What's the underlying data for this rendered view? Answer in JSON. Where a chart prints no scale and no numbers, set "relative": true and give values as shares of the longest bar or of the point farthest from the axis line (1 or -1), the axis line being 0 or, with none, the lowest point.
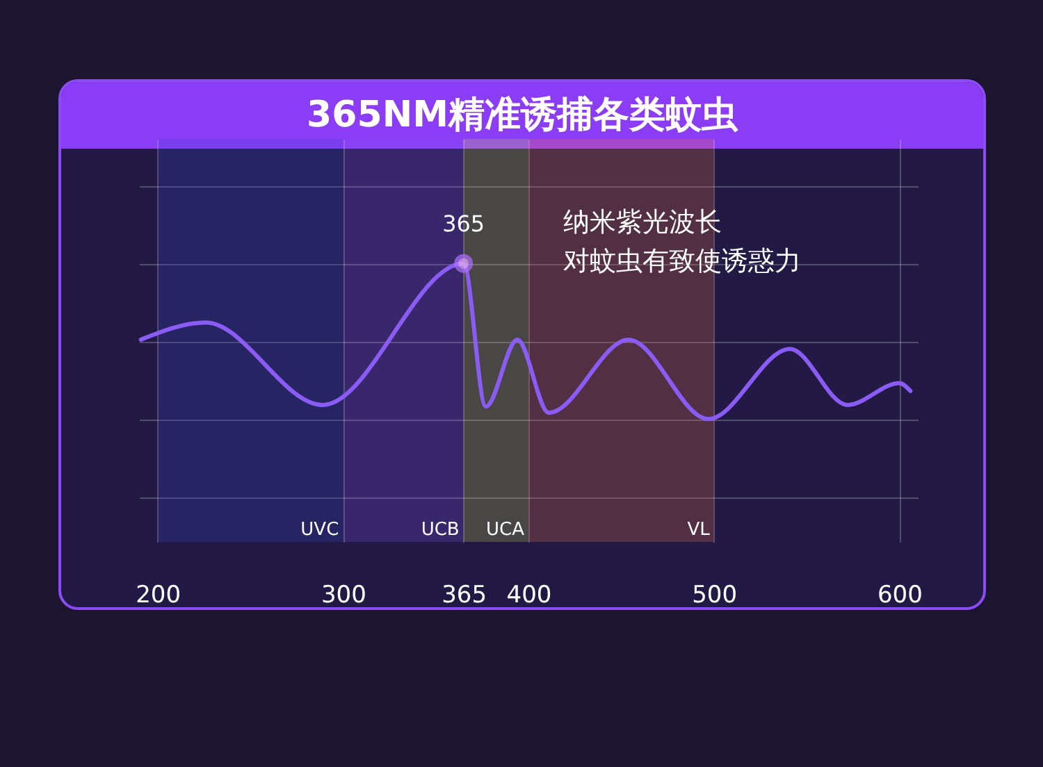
{
  "chart_data": {
    "type": "line",
    "title": "365NM精准诱捕各类蚊虫",
    "relative": true,
    "grid": true,
    "x": [
      191,
      226,
      289,
      365,
      377,
      394,
      411,
      454,
      497,
      541,
      572,
      600,
      606
    ],
    "series": [
      {
        "color": "#8a5cf5",
        "values": [
          0.51,
          0.62,
          0.09,
          1,
          0.08,
          0.51,
          0.04,
          0.51,
          0,
          0.45,
          0.09,
          0.23,
          0.18
        ]
      }
    ],
    "xlim": [
      190,
      610
    ],
    "xticks": [
      200,
      300,
      365,
      400,
      500,
      600
    ],
    "bands": [
      {
        "axis": "x",
        "from": 200,
        "to": 300,
        "label": "UVC",
        "color": "#3a4bd8"
      },
      {
        "axis": "x",
        "from": 300,
        "to": 365,
        "label": "UCB",
        "color": "#8a5cf5"
      },
      {
        "axis": "x",
        "from": 365,
        "to": 400,
        "label": "UCA",
        "color": "#d4e84a"
      },
      {
        "axis": "x",
        "from": 400,
        "to": 500,
        "label": "VL",
        "color": "#ff7a3a"
      }
    ],
    "annotations": [
      {
        "text": "365",
        "x": 365,
        "y": 1
      },
      "纳米紫光波长",
      "对蚊虫有致使诱惑力"
    ]
  }
}
